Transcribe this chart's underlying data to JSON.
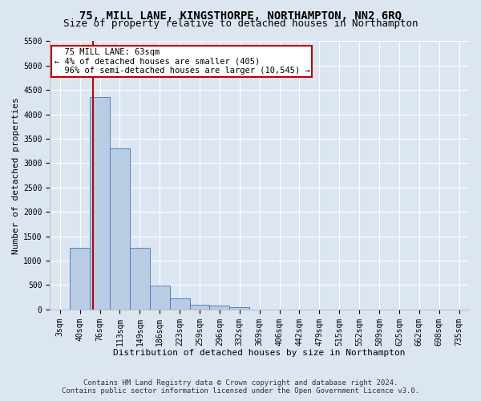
{
  "title": "75, MILL LANE, KINGSTHORPE, NORTHAMPTON, NN2 6RQ",
  "subtitle": "Size of property relative to detached houses in Northampton",
  "xlabel": "Distribution of detached houses by size in Northampton",
  "ylabel": "Number of detached properties",
  "footnote1": "Contains HM Land Registry data © Crown copyright and database right 2024.",
  "footnote2": "Contains public sector information licensed under the Open Government Licence v3.0.",
  "categories": [
    "3sqm",
    "40sqm",
    "76sqm",
    "113sqm",
    "149sqm",
    "186sqm",
    "223sqm",
    "259sqm",
    "296sqm",
    "332sqm",
    "369sqm",
    "406sqm",
    "442sqm",
    "479sqm",
    "515sqm",
    "552sqm",
    "589sqm",
    "625sqm",
    "662sqm",
    "698sqm",
    "735sqm"
  ],
  "values": [
    0,
    1270,
    4350,
    3300,
    1270,
    490,
    220,
    90,
    75,
    55,
    0,
    0,
    0,
    0,
    0,
    0,
    0,
    0,
    0,
    0,
    0
  ],
  "bar_color": "#b8cce4",
  "bar_edge_color": "#4472c4",
  "property_size": "63sqm",
  "property_name": "75 MILL LANE",
  "pct_smaller": "4%",
  "n_smaller": "405",
  "pct_larger_semi": "96%",
  "n_larger_semi": "10,545",
  "annotation_line_color": "#c00000",
  "ylim": [
    0,
    5500
  ],
  "yticks": [
    0,
    500,
    1000,
    1500,
    2000,
    2500,
    3000,
    3500,
    4000,
    4500,
    5000,
    5500
  ],
  "bg_color": "#dce6f1",
  "plot_bg_color": "#dce6f1",
  "grid_color": "#ffffff",
  "title_fontsize": 10,
  "subtitle_fontsize": 9,
  "axis_label_fontsize": 8,
  "tick_fontsize": 7,
  "annot_fontsize": 7.5,
  "footnote_fontsize": 6.5
}
